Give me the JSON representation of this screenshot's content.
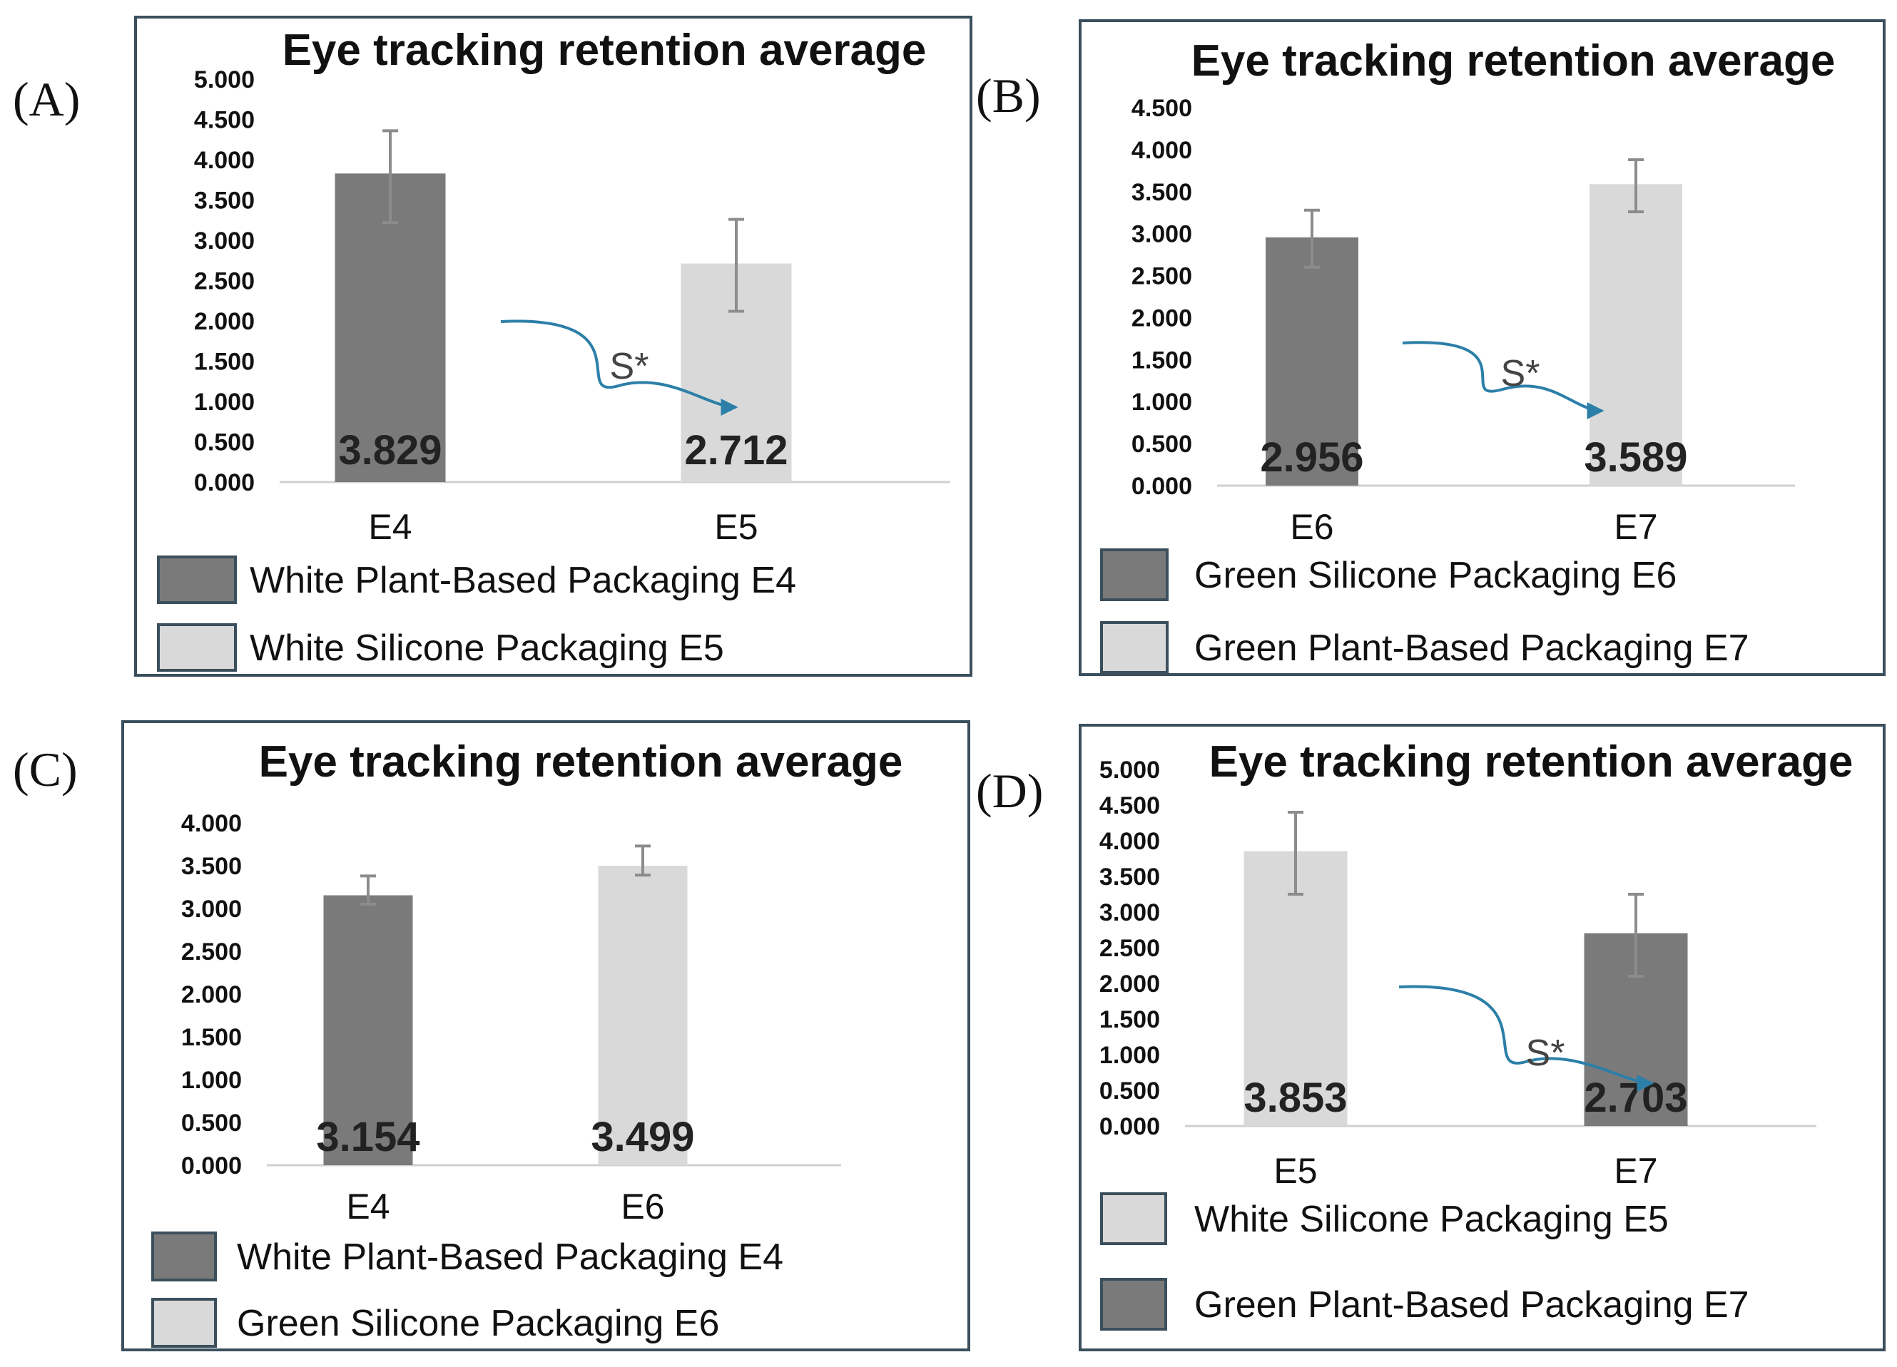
{
  "panel_labels": [
    "(A)",
    "(B)",
    "(C)",
    "(D)"
  ],
  "colors": {
    "dark_bar": "#7a7a7a",
    "light_bar": "#d9d9d9",
    "border": "#3b4f5c",
    "arrow": "#2c7fa8",
    "error_bar": "#8c8c8c"
  },
  "chart_data": [
    {
      "type": "bar",
      "title": "Eye tracking retention average",
      "categories": [
        "E4",
        "E5"
      ],
      "values": [
        3.829,
        2.712
      ],
      "value_labels": [
        "3.829",
        "2.712"
      ],
      "error": [
        [
          3.22,
          4.36
        ],
        [
          2.12,
          3.26
        ]
      ],
      "bar_colors": [
        "dark",
        "light"
      ],
      "ylim": [
        0,
        5
      ],
      "yticks": [
        "0.000",
        "0.500",
        "1.000",
        "1.500",
        "2.000",
        "2.500",
        "3.000",
        "3.500",
        "4.000",
        "4.500",
        "5.000"
      ],
      "significance": "S*",
      "legend": [
        {
          "label": "White Plant-Based Packaging E4",
          "color": "dark"
        },
        {
          "label": "White Silicone Packaging E5",
          "color": "light"
        }
      ]
    },
    {
      "type": "bar",
      "title": "Eye tracking retention average",
      "categories": [
        "E6",
        "E7"
      ],
      "values": [
        2.956,
        3.589
      ],
      "value_labels": [
        "2.956",
        "3.589"
      ],
      "error": [
        [
          2.6,
          3.28
        ],
        [
          3.26,
          3.88
        ]
      ],
      "bar_colors": [
        "dark",
        "light"
      ],
      "ylim": [
        0,
        4.5
      ],
      "yticks": [
        "0.000",
        "0.500",
        "1.000",
        "1.500",
        "2.000",
        "2.500",
        "3.000",
        "3.500",
        "4.000",
        "4.500"
      ],
      "significance": "S*",
      "legend": [
        {
          "label": "Green Silicone Packaging E6",
          "color": "dark"
        },
        {
          "label": "Green Plant-Based Packaging E7",
          "color": "light"
        }
      ]
    },
    {
      "type": "bar",
      "title": "Eye tracking retention average",
      "categories": [
        "E4",
        "E6"
      ],
      "values": [
        3.154,
        3.499
      ],
      "value_labels": [
        "3.154",
        "3.499"
      ],
      "error": [
        [
          3.05,
          3.38
        ],
        [
          3.39,
          3.73
        ]
      ],
      "bar_colors": [
        "dark",
        "light"
      ],
      "ylim": [
        0,
        4
      ],
      "yticks": [
        "0.000",
        "0.500",
        "1.000",
        "1.500",
        "2.000",
        "2.500",
        "3.000",
        "3.500",
        "4.000"
      ],
      "significance": "",
      "legend": [
        {
          "label": "White Plant-Based Packaging E4",
          "color": "dark"
        },
        {
          "label": "Green Silicone Packaging E6",
          "color": "light"
        }
      ]
    },
    {
      "type": "bar",
      "title": "Eye tracking retention average",
      "categories": [
        "E5",
        "E7"
      ],
      "values": [
        3.853,
        2.703
      ],
      "value_labels": [
        "3.853",
        "2.703"
      ],
      "error": [
        [
          3.25,
          4.4
        ],
        [
          2.1,
          3.25
        ]
      ],
      "bar_colors": [
        "light",
        "dark"
      ],
      "ylim": [
        0,
        5
      ],
      "yticks": [
        "0.000",
        "0.500",
        "1.000",
        "1.500",
        "2.000",
        "2.500",
        "3.000",
        "3.500",
        "4.000",
        "4.500",
        "5.000"
      ],
      "significance": "S*",
      "legend": [
        {
          "label": "White Silicone Packaging E5",
          "color": "light"
        },
        {
          "label": "Green Plant-Based Packaging E7",
          "color": "dark"
        }
      ]
    }
  ]
}
